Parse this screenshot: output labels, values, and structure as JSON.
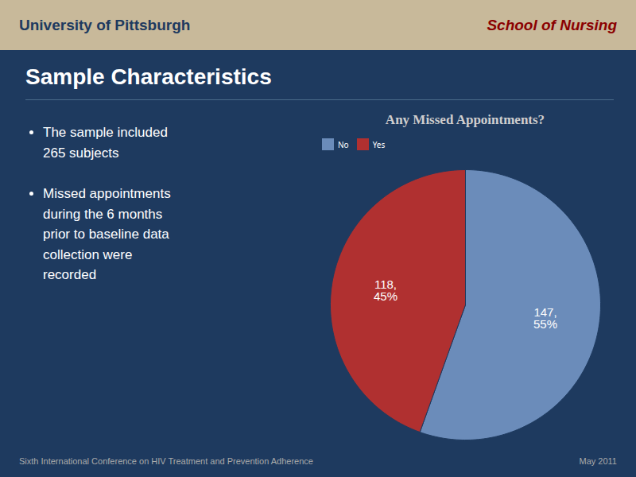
{
  "chart_data": {
    "type": "pie",
    "title": "Any Missed Appointments?",
    "categories": [
      "No",
      "Yes"
    ],
    "values": [
      147,
      118
    ],
    "value_labels": [
      "147,\n55%",
      "118,\n45%"
    ],
    "colors": [
      "#6b8cba",
      "#b03030"
    ],
    "legend": "top",
    "data_labels": true,
    "annotations": [
      "University of Pittsburgh",
      "School of Nursing",
      "Sample Characteristics",
      "The sample included\n265 subjects",
      "Missed appointments\nduring the 6 months\nprior to baseline data\ncollection were\nrecorded",
      "Sixth International Conference on HIV Treatment and Prevention Adherence",
      "May 2011"
    ]
  }
}
